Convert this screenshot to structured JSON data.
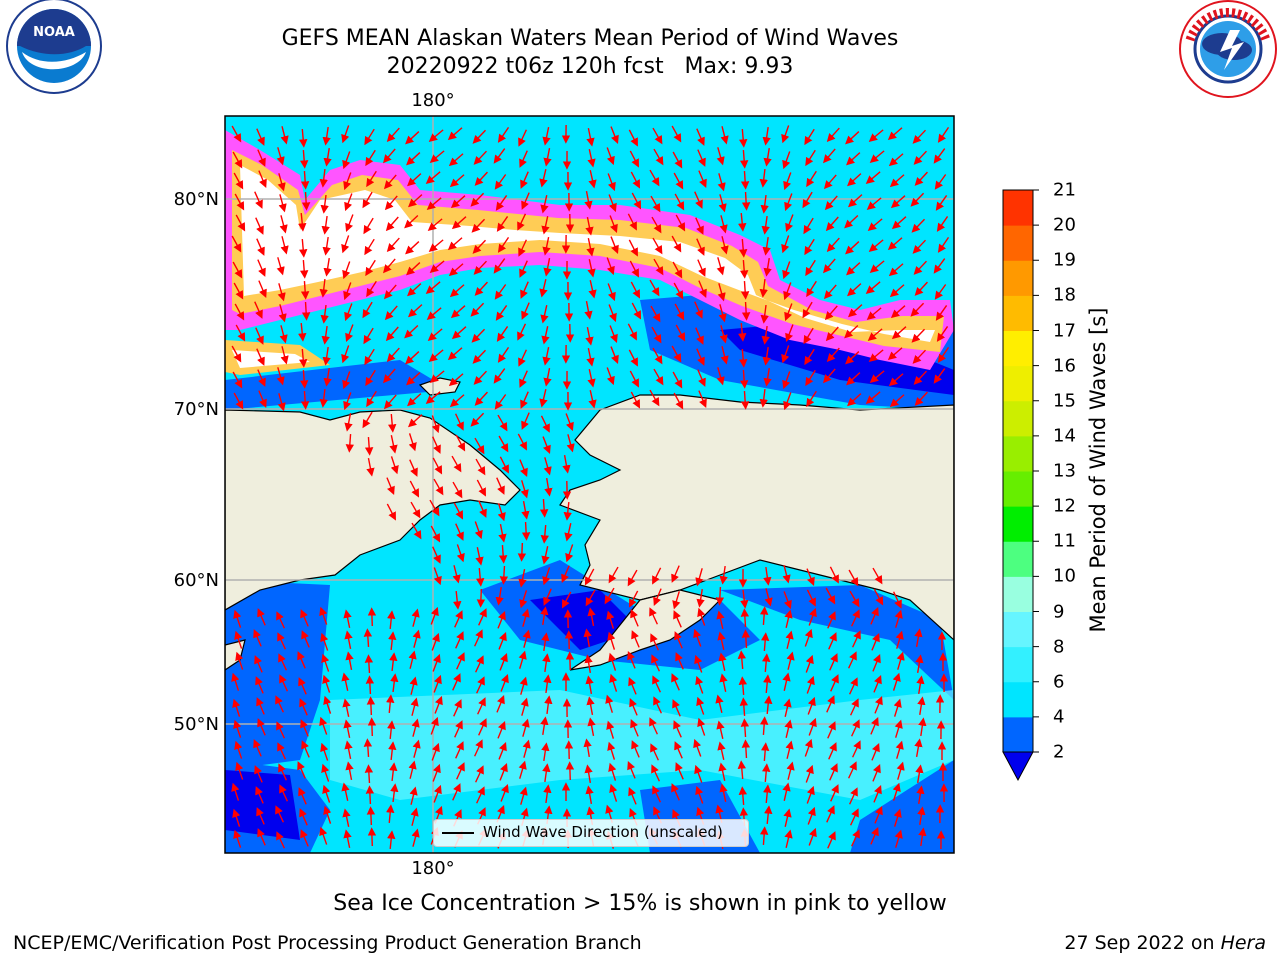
{
  "header": {
    "title": "GEFS MEAN Alaskan Waters Mean Period of Wind Waves",
    "subtitle": "20220922 t06z 120h fcst   Max: 9.93"
  },
  "logos": {
    "left_name": "noaa-logo",
    "left_text": "NOAA",
    "right_name": "nws-logo",
    "right_text": "NATIONAL WEATHER SERVICE"
  },
  "map": {
    "lon_label_top": "180°",
    "lon_label_bottom": "180°",
    "lat_labels": [
      "80°N",
      "70°N",
      "60°N",
      "50°N"
    ],
    "legend_label": "Wind Wave Direction (unscaled)",
    "land_color": "#efeedd",
    "grid_color": "#b0b0b0",
    "arrow_color": "#ff0000"
  },
  "colorbar": {
    "label": "Mean Period of Wind Waves [s]",
    "ticks": [
      "2",
      "4",
      "6",
      "8",
      "9",
      "10",
      "11",
      "12",
      "13",
      "14",
      "15",
      "16",
      "17",
      "18",
      "19",
      "20",
      "21"
    ],
    "colors": [
      "#0066ff",
      "#00e5ff",
      "#33f0ff",
      "#66f5ff",
      "#99ffe0",
      "#4dff80",
      "#00ee00",
      "#66ee00",
      "#99ee00",
      "#ccee00",
      "#eeee00",
      "#ffee00",
      "#ffbb00",
      "#ff9900",
      "#ff6600",
      "#ff3300",
      "#ff0000"
    ],
    "under_color": "#0000ee"
  },
  "caption": "Sea Ice Concentration > 15% is shown in pink to yellow",
  "footer": {
    "left": "NCEP/EMC/Verification Post Processing Product Generation Branch",
    "right_prefix": "27 Sep 2022 on ",
    "right_host": "Hera"
  }
}
